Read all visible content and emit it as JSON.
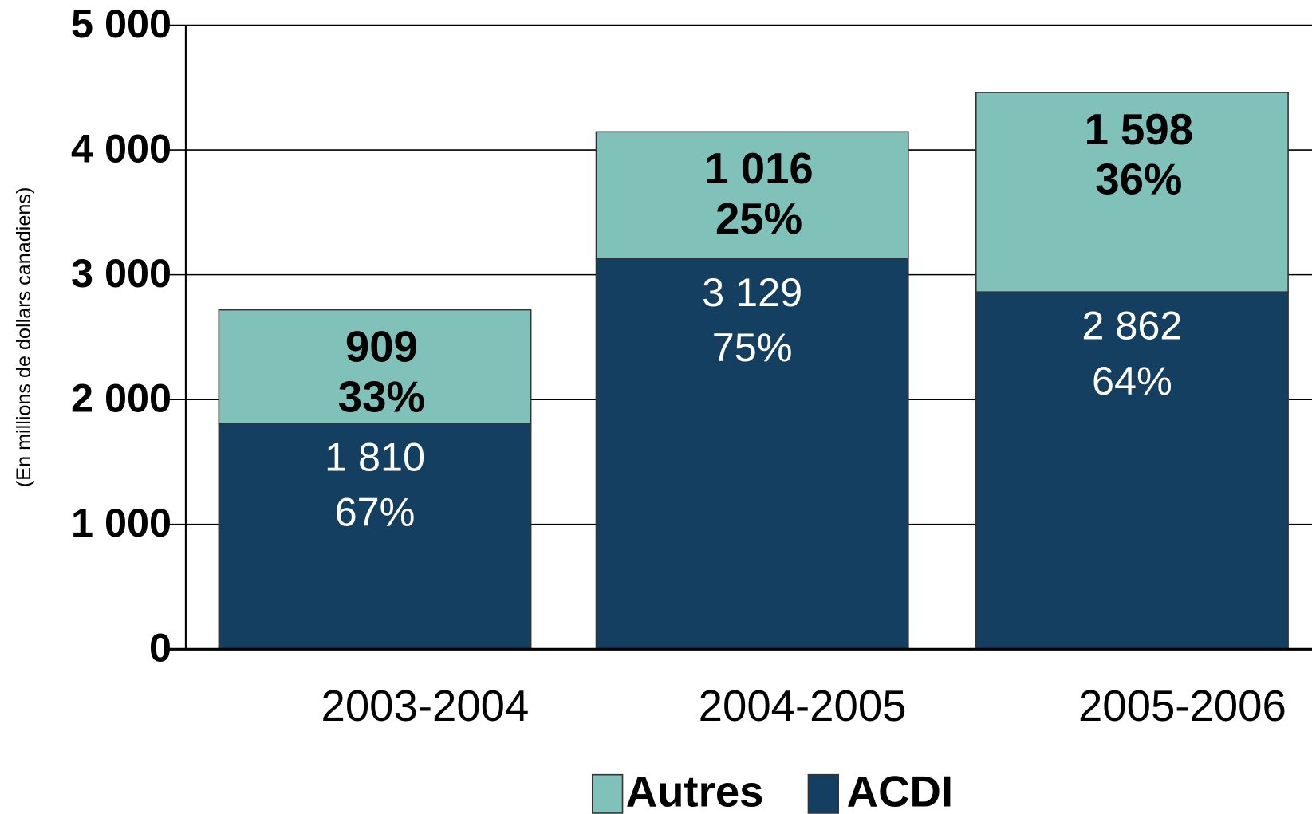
{
  "chart_data": {
    "type": "stacked_bar",
    "y_label": "(En millions de dollars canadiens)",
    "categories": [
      "2003-2004",
      "2004-2005",
      "2005-2006"
    ],
    "series": [
      {
        "name": "ACDI",
        "color": "#143f60",
        "values": [
          1810,
          3129,
          2862
        ],
        "value_labels": [
          "1 810",
          "3 129",
          "2 862"
        ],
        "percent_labels": [
          "67%",
          "75%",
          "64%"
        ]
      },
      {
        "name": "Autres",
        "color": "#80c1b9",
        "values": [
          909,
          1016,
          1598
        ],
        "value_labels": [
          "909",
          "1 016",
          "1 598"
        ],
        "percent_labels": [
          "33%",
          "25%",
          "36%"
        ]
      }
    ],
    "ylim": [
      0,
      5000
    ],
    "yticks": [
      0,
      {
        "value": 1000,
        "label": "1 000"
      },
      {
        "value": 2000,
        "label": "2 000"
      },
      {
        "value": 3000,
        "label": "3 000"
      },
      {
        "value": 4000,
        "label": "4 000"
      },
      {
        "value": 5000,
        "label": "5 000"
      }
    ],
    "grid": true,
    "legend": "bottom"
  }
}
